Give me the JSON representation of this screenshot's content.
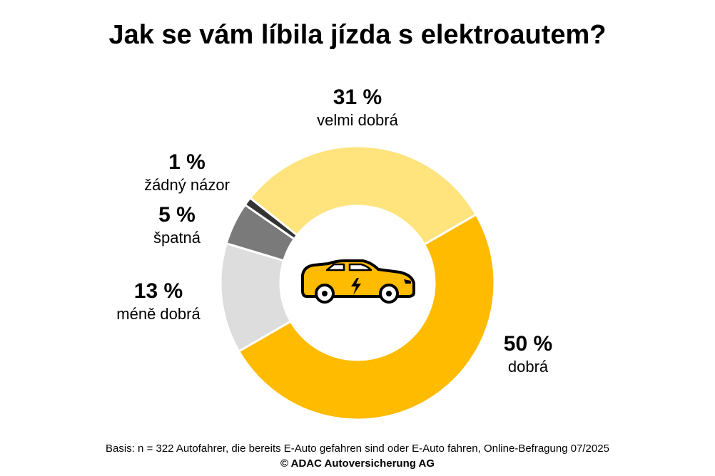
{
  "chart_data": {
    "type": "pie",
    "title": "Jak se vám líbila jízda s elektroautem?",
    "slices": [
      {
        "label": "dobrá",
        "value": 50,
        "value_label": "50 %",
        "color": "#FFBB00"
      },
      {
        "label": "méně dobrá",
        "value": 13,
        "value_label": "13 %",
        "color": "#DDDDDD"
      },
      {
        "label": "špatná",
        "value": 5,
        "value_label": "5 %",
        "color": "#7A7A7A"
      },
      {
        "label": "žádný názor",
        "value": 1,
        "value_label": "1 %",
        "color": "#333333"
      },
      {
        "label": "velmi dobrá",
        "value": 31,
        "value_label": "31 %",
        "color": "#FFE47E"
      }
    ]
  },
  "footer": {
    "basis": "Basis: n = 322 Autofahrer, die bereits E-Auto gefahren sind oder E-Auto fahren, Online-Befragung 07/2025",
    "copyright": "© ADAC Autoversicherung AG"
  },
  "colors": {
    "car_body": "#FFBB00",
    "car_outline": "#000000"
  }
}
